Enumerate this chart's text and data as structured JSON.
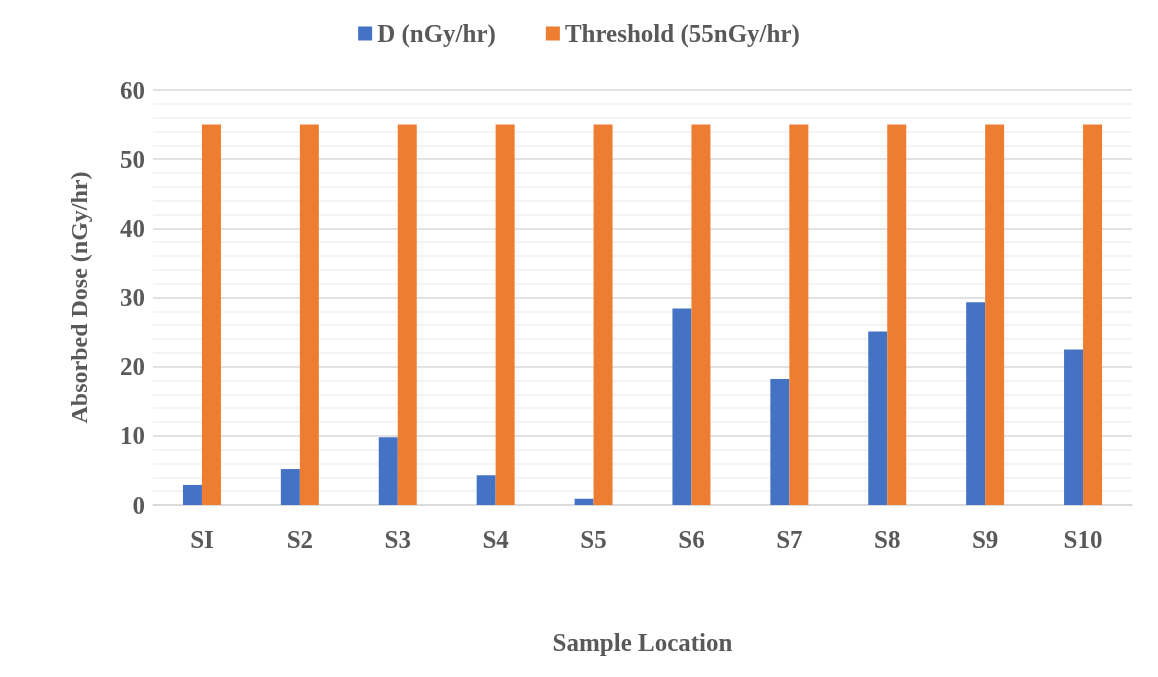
{
  "chart_data": {
    "type": "bar",
    "xlabel": "Sample Location",
    "ylabel": "Absorbed Dose (nGy/hr)",
    "categories": [
      "SI",
      "S2",
      "S3",
      "S4",
      "S5",
      "S6",
      "S7",
      "S8",
      "S9",
      "S10"
    ],
    "series": [
      {
        "name": "D (nGy/hr)",
        "color": "#4472c4",
        "values": [
          2.9,
          5.2,
          9.8,
          4.3,
          0.9,
          28.4,
          18.2,
          25.1,
          29.3,
          22.5
        ]
      },
      {
        "name": "Threshold (55nGy/hr)",
        "color": "#ed7d31",
        "values": [
          55,
          55,
          55,
          55,
          55,
          55,
          55,
          55,
          55,
          55
        ]
      }
    ],
    "ylim": [
      0,
      60
    ],
    "yticks": [
      0,
      10,
      20,
      30,
      40,
      50,
      60
    ],
    "grid": "y",
    "legend": "top"
  }
}
